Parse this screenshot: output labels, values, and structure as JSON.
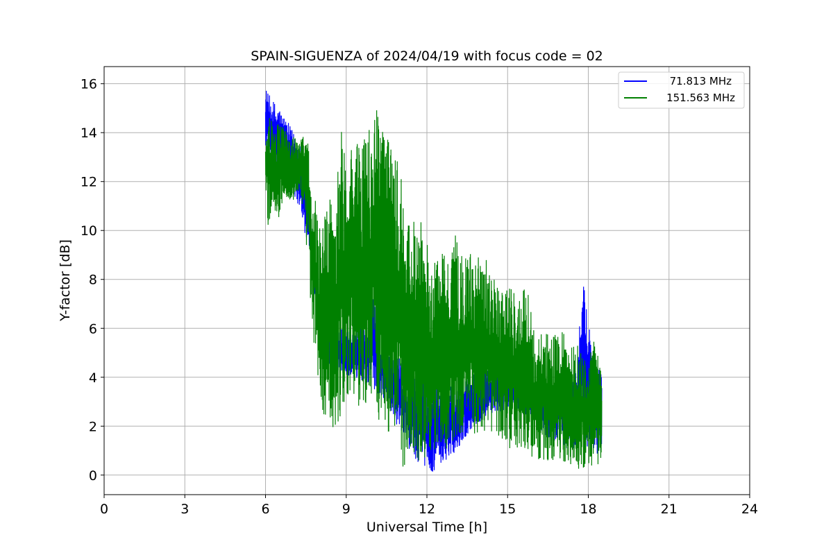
{
  "chart_data": {
    "type": "line",
    "title": "SPAIN-SIGUENZA of 2024/04/19 with focus code = 02",
    "xlabel": "Universal Time [h]",
    "ylabel": "Y-factor [dB]",
    "xlim": [
      0,
      24
    ],
    "ylim": [
      -0.8,
      16.7
    ],
    "xticks": [
      0,
      3,
      6,
      9,
      12,
      15,
      18,
      21,
      24
    ],
    "yticks": [
      0,
      2,
      4,
      6,
      8,
      10,
      12,
      14,
      16
    ],
    "grid": true,
    "legend_position": "top-right",
    "series": [
      {
        "name": "71.813 MHz",
        "color": "#0000ff",
        "x": [
          6.0,
          6.1,
          6.3,
          6.5,
          6.7,
          6.9,
          7.1,
          7.3,
          7.5,
          7.6,
          7.7,
          7.8,
          7.9,
          8.0,
          8.2,
          8.4,
          8.6,
          8.8,
          9.0,
          9.2,
          9.4,
          9.6,
          9.8,
          10.0,
          10.2,
          10.4,
          10.6,
          10.8,
          11.0,
          11.2,
          11.4,
          11.6,
          11.8,
          12.0,
          12.2,
          12.4,
          12.6,
          12.8,
          13.0,
          13.2,
          13.4,
          13.6,
          13.8,
          14.0,
          14.2,
          14.4,
          14.6,
          14.8,
          15.0,
          15.2,
          15.4,
          15.6,
          15.8,
          16.0,
          16.2,
          16.4,
          16.6,
          16.8,
          17.0,
          17.2,
          17.4,
          17.6,
          17.8,
          18.0,
          18.2,
          18.5
        ],
        "upper": [
          15.9,
          15.6,
          15.3,
          15.1,
          14.7,
          14.3,
          13.9,
          13.7,
          12.5,
          11.8,
          10.3,
          9.0,
          8.0,
          7.0,
          6.5,
          6.2,
          6.0,
          6.0,
          5.9,
          5.9,
          6.0,
          6.1,
          6.0,
          7.6,
          6.0,
          5.5,
          5.2,
          5.0,
          4.8,
          4.6,
          4.4,
          4.0,
          3.9,
          3.8,
          3.7,
          3.6,
          3.6,
          3.7,
          3.8,
          3.9,
          4.0,
          4.1,
          4.2,
          4.2,
          4.3,
          4.4,
          4.4,
          4.5,
          4.4,
          4.3,
          4.2,
          4.0,
          3.8,
          3.6,
          3.5,
          3.5,
          3.6,
          3.7,
          3.9,
          4.2,
          4.5,
          5.0,
          7.9,
          6.6,
          4.5,
          4.4
        ],
        "lower": [
          13.5,
          13.0,
          12.5,
          12.0,
          11.8,
          11.5,
          11.2,
          11.0,
          9.5,
          9.2,
          8.5,
          7.5,
          6.5,
          5.5,
          4.8,
          4.5,
          4.3,
          4.2,
          4.1,
          4.0,
          3.9,
          3.8,
          3.6,
          3.5,
          3.2,
          3.0,
          2.8,
          2.2,
          1.8,
          1.2,
          0.9,
          0.6,
          0.4,
          0.3,
          0.1,
          0.3,
          0.5,
          0.7,
          0.9,
          1.1,
          1.5,
          1.8,
          2.0,
          2.2,
          2.4,
          2.5,
          2.6,
          2.6,
          2.7,
          2.6,
          2.5,
          2.4,
          2.2,
          2.0,
          1.8,
          1.6,
          1.4,
          1.3,
          1.2,
          1.1,
          1.0,
          1.0,
          1.2,
          1.1,
          0.9,
          0.8
        ]
      },
      {
        "name": "151.563 MHz",
        "color": "#008000",
        "x": [
          6.0,
          6.1,
          6.3,
          6.5,
          6.7,
          6.9,
          7.1,
          7.3,
          7.5,
          7.6,
          7.7,
          7.8,
          7.9,
          8.0,
          8.2,
          8.4,
          8.6,
          8.8,
          9.0,
          9.2,
          9.4,
          9.6,
          9.8,
          10.0,
          10.2,
          10.4,
          10.6,
          10.8,
          11.0,
          11.2,
          11.4,
          11.6,
          11.8,
          12.0,
          12.2,
          12.4,
          12.6,
          12.8,
          13.0,
          13.2,
          13.4,
          13.6,
          13.8,
          14.0,
          14.2,
          14.4,
          14.6,
          14.8,
          15.0,
          15.2,
          15.4,
          15.6,
          15.8,
          16.0,
          16.2,
          16.4,
          16.6,
          16.8,
          17.0,
          17.2,
          17.4,
          17.6,
          17.8,
          18.0,
          18.2,
          18.5
        ],
        "upper": [
          14.1,
          14.6,
          14.7,
          14.3,
          14.3,
          14.0,
          13.8,
          13.9,
          13.8,
          13.6,
          12.4,
          12.4,
          10.7,
          10.2,
          11.1,
          11.4,
          10.6,
          14.9,
          13.6,
          13.6,
          13.6,
          13.8,
          14.0,
          14.8,
          15.0,
          14.4,
          14.3,
          13.3,
          12.7,
          10.3,
          10.7,
          10.4,
          10.6,
          9.6,
          8.7,
          9.1,
          9.1,
          8.7,
          10.4,
          9.2,
          9.0,
          9.2,
          8.6,
          9.2,
          9.3,
          8.5,
          7.9,
          7.6,
          7.9,
          7.8,
          7.2,
          7.7,
          7.9,
          6.0,
          5.8,
          5.8,
          5.9,
          5.8,
          6.1,
          5.4,
          5.5,
          5.5,
          4.8,
          5.0,
          5.5,
          4.5
        ],
        "lower": [
          12.0,
          10.0,
          10.9,
          10.5,
          11.5,
          11.0,
          11.2,
          11.6,
          9.5,
          9.0,
          6.0,
          5.0,
          4.7,
          3.0,
          1.5,
          2.3,
          1.5,
          2.5,
          2.6,
          3.5,
          3.0,
          2.4,
          2.8,
          3.5,
          2.0,
          2.5,
          1.5,
          1.2,
          0.5,
          0.2,
          0.8,
          0.4,
          0.6,
          0.8,
          0.9,
          1.2,
          0.8,
          1.0,
          1.4,
          1.6,
          1.8,
          1.6,
          1.7,
          1.4,
          1.6,
          1.5,
          1.6,
          1.4,
          1.2,
          0.9,
          1.0,
          0.8,
          0.8,
          0.6,
          0.6,
          0.5,
          0.5,
          0.5,
          0.4,
          0.3,
          0.2,
          0.2,
          0.3,
          0.3,
          0.4,
          0.4
        ]
      }
    ]
  }
}
